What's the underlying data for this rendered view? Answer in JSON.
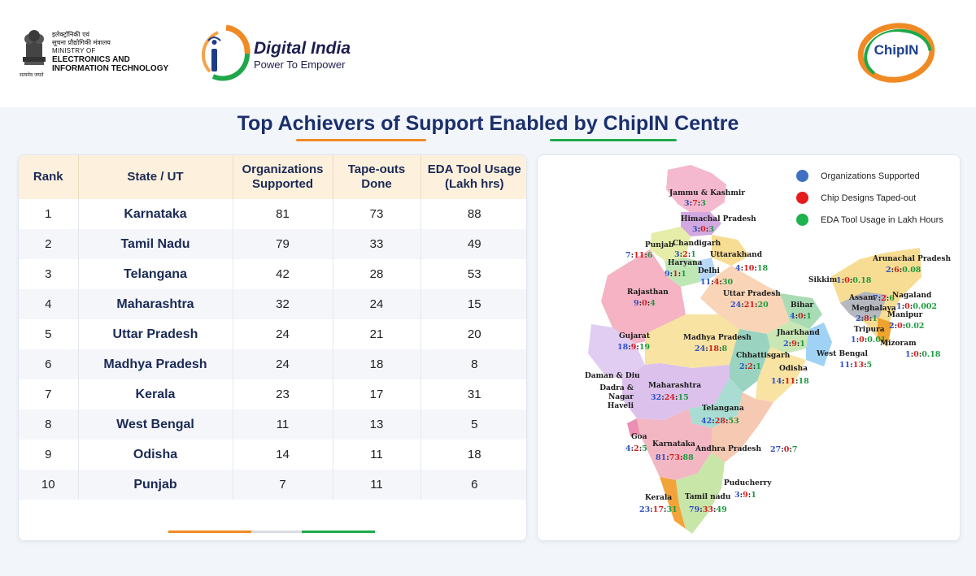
{
  "header": {
    "ministry_hindi_1": "इलेक्ट्रॉनिकी एवं",
    "ministry_hindi_2": "सूचना प्रौद्योगिकी मंत्रालय",
    "ministry_en_1": "MINISTRY OF",
    "ministry_en_2": "ELECTRONICS AND",
    "ministry_en_3": "INFORMATION TECHNOLOGY",
    "emblem_motto": "सत्यमेव जयते",
    "digital_india_title": "Digital India",
    "digital_india_tagline": "Power To Empower",
    "chipin_logo_text": "ChipIN"
  },
  "page_title": "Top Achievers of Support Enabled by ChipIN Centre",
  "colors": {
    "orange": "#f08a24",
    "green": "#1fa84a",
    "blue": "#2d4fc8",
    "red": "#d81b1b",
    "navy": "#1b2f6b"
  },
  "table": {
    "headers": {
      "rank": "Rank",
      "state": "State / UT",
      "orgs_1": "Organizations",
      "orgs_2": "Supported",
      "tape_1": "Tape-outs",
      "tape_2": "Done",
      "eda_1": "EDA Tool Usage",
      "eda_2": "(Lakh hrs)"
    },
    "rows": [
      {
        "rank": "1",
        "state": "Karnataka",
        "orgs": "81",
        "tapeouts": "73",
        "eda": "88"
      },
      {
        "rank": "2",
        "state": "Tamil Nadu",
        "orgs": "79",
        "tapeouts": "33",
        "eda": "49"
      },
      {
        "rank": "3",
        "state": "Telangana",
        "orgs": "42",
        "tapeouts": "28",
        "eda": "53"
      },
      {
        "rank": "4",
        "state": "Maharashtra",
        "orgs": "32",
        "tapeouts": "24",
        "eda": "15"
      },
      {
        "rank": "5",
        "state": "Uttar Pradesh",
        "orgs": "24",
        "tapeouts": "21",
        "eda": "20"
      },
      {
        "rank": "6",
        "state": "Madhya Pradesh",
        "orgs": "24",
        "tapeouts": "18",
        "eda": "8"
      },
      {
        "rank": "7",
        "state": "Kerala",
        "orgs": "23",
        "tapeouts": "17",
        "eda": "31"
      },
      {
        "rank": "8",
        "state": "West Bengal",
        "orgs": "11",
        "tapeouts": "13",
        "eda": "5"
      },
      {
        "rank": "9",
        "state": "Odisha",
        "orgs": "14",
        "tapeouts": "11",
        "eda": "18"
      },
      {
        "rank": "10",
        "state": "Punjab",
        "orgs": "7",
        "tapeouts": "11",
        "eda": "6"
      }
    ]
  },
  "legend": [
    {
      "label": "Organizations Supported",
      "color": "#3f6fc0"
    },
    {
      "label": "Chip Designs Taped-out",
      "color": "#e61c1c"
    },
    {
      "label": "EDA Tool Usage in Lakh Hours",
      "color": "#1eb24d"
    }
  ],
  "map_states": [
    {
      "name": "Jammu & Kashmir",
      "a": "3",
      "b": "7",
      "c": "3"
    },
    {
      "name": "Himachal Pradesh",
      "a": "3",
      "b": "0",
      "c": "3"
    },
    {
      "name": "Punjab",
      "a": "7",
      "b": "11",
      "c": "6"
    },
    {
      "name": "Chandigarh",
      "a": "3",
      "b": "2",
      "c": "1"
    },
    {
      "name": "Uttarakhand",
      "a": "4",
      "b": "10",
      "c": "18"
    },
    {
      "name": "Haryana",
      "a": "9",
      "b": "1",
      "c": "1"
    },
    {
      "name": "Delhi",
      "a": "11",
      "b": "4",
      "c": "30"
    },
    {
      "name": "Rajasthan",
      "a": "9",
      "b": "0",
      "c": "4"
    },
    {
      "name": "Uttar Pradesh",
      "a": "24",
      "b": "21",
      "c": "20"
    },
    {
      "name": "Bihar",
      "a": "4",
      "b": "0",
      "c": "1"
    },
    {
      "name": "Sikkim",
      "a": "1",
      "b": "0",
      "c": "0.18"
    },
    {
      "name": "Arunachal Pradesh",
      "a": "2",
      "b": "6",
      "c": "0.08"
    },
    {
      "name": "Assam",
      "a": "7",
      "b": "2",
      "c": "6"
    },
    {
      "name": "Nagaland",
      "a": "1",
      "b": "0",
      "c": "0.002"
    },
    {
      "name": "Meghalaya",
      "a": "2",
      "b": "8",
      "c": "1"
    },
    {
      "name": "Manipur",
      "a": "2",
      "b": "0",
      "c": "0.02"
    },
    {
      "name": "Tripura",
      "a": "1",
      "b": "0",
      "c": "0.01"
    },
    {
      "name": "Mizoram",
      "a": "1",
      "b": "0",
      "c": "0.18"
    },
    {
      "name": "Gujarat",
      "a": "18",
      "b": "9",
      "c": "19"
    },
    {
      "name": "Madhya Pradesh",
      "a": "24",
      "b": "18",
      "c": "8"
    },
    {
      "name": "Jharkhand",
      "a": "2",
      "b": "9",
      "c": "1"
    },
    {
      "name": "Chhattisgarh",
      "a": "2",
      "b": "2",
      "c": "1"
    },
    {
      "name": "West Bengal",
      "a": "11",
      "b": "13",
      "c": "5"
    },
    {
      "name": "Odisha",
      "a": "14",
      "b": "11",
      "c": "18"
    },
    {
      "name": "Daman & Diu",
      "a": "",
      "b": "",
      "c": ""
    },
    {
      "name": "Dadra & Nagar Haveli",
      "a": "",
      "b": "",
      "c": ""
    },
    {
      "name": "Maharashtra",
      "a": "32",
      "b": "24",
      "c": "15"
    },
    {
      "name": "Telangana",
      "a": "42",
      "b": "28",
      "c": "53"
    },
    {
      "name": "Goa",
      "a": "4",
      "b": "2",
      "c": "5"
    },
    {
      "name": "Karnataka",
      "a": "81",
      "b": "73",
      "c": "88"
    },
    {
      "name": "Andhra Pradesh",
      "a": "27",
      "b": "0",
      "c": "7"
    },
    {
      "name": "Puducherry",
      "a": "3",
      "b": "9",
      "c": "1"
    },
    {
      "name": "Kerala",
      "a": "23",
      "b": "17",
      "c": "31"
    },
    {
      "name": "Tamil nadu",
      "a": "79",
      "b": "33",
      "c": "49"
    }
  ]
}
